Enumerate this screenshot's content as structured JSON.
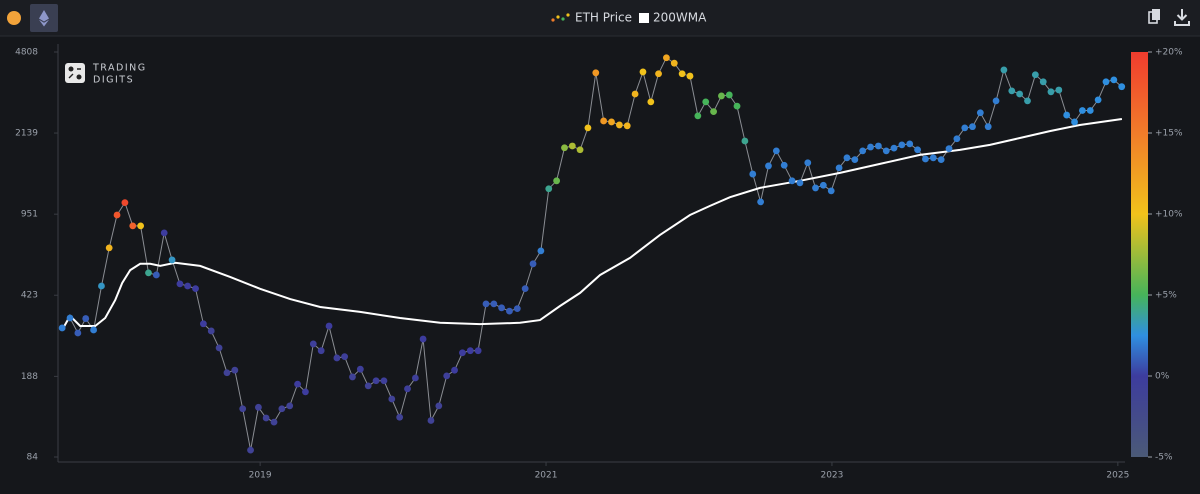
{
  "logo": [
    "TRADING",
    "DIGITS"
  ],
  "chart_data": {
    "type": "scatter",
    "log_y": true,
    "ylim": [
      84,
      4808
    ],
    "yticks": [
      84,
      188,
      423,
      951,
      2139,
      4808
    ],
    "xlim": [
      2017.6,
      2025.05
    ],
    "xticks": [
      2019,
      2021,
      2023,
      2025
    ],
    "colorbar": {
      "range": [
        -5,
        20
      ],
      "ticks": [
        {
          "value": -5,
          "label": "-5%"
        },
        {
          "value": 0,
          "label": "0%"
        },
        {
          "value": 5,
          "label": "+5%"
        },
        {
          "value": 10,
          "label": "+10%"
        },
        {
          "value": 15,
          "label": "+15%"
        },
        {
          "value": 20,
          "label": "+20%"
        }
      ],
      "stops": [
        {
          "value": -5,
          "color": "#4b5a77"
        },
        {
          "value": 0,
          "color": "#3d3c9e"
        },
        {
          "value": 2.5,
          "color": "#2f8fe0"
        },
        {
          "value": 5,
          "color": "#46b45a"
        },
        {
          "value": 10,
          "color": "#f1c21b"
        },
        {
          "value": 15,
          "color": "#f07c2a"
        },
        {
          "value": 20,
          "color": "#f03c2e"
        }
      ]
    },
    "series": [
      {
        "name": "ETH Price",
        "line_color": "#8a8d93",
        "x": [
          2017.615,
          2017.67,
          2017.725,
          2017.78,
          2017.835,
          2017.89,
          2017.944,
          2017.999,
          2018.054,
          2018.109,
          2018.164,
          2018.219,
          2018.274,
          2018.329,
          2018.384,
          2018.439,
          2018.493,
          2018.548,
          2018.603,
          2018.658,
          2018.713,
          2018.768,
          2018.823,
          2018.878,
          2018.933,
          2018.988,
          2019.042,
          2019.097,
          2019.152,
          2019.207,
          2019.262,
          2019.317,
          2019.372,
          2019.427,
          2019.482,
          2019.537,
          2019.591,
          2019.646,
          2019.701,
          2019.756,
          2019.811,
          2019.866,
          2019.921,
          2019.976,
          2020.031,
          2020.086,
          2020.14,
          2020.195,
          2020.25,
          2020.305,
          2020.36,
          2020.415,
          2020.47,
          2020.525,
          2020.58,
          2020.635,
          2020.689,
          2020.744,
          2020.799,
          2020.854,
          2020.909,
          2020.964,
          2021.019,
          2021.074,
          2021.129,
          2021.184,
          2021.238,
          2021.293,
          2021.348,
          2021.403,
          2021.458,
          2021.513,
          2021.568,
          2021.623,
          2021.678,
          2021.733,
          2021.787,
          2021.842,
          2021.897,
          2021.952,
          2022.007,
          2022.062,
          2022.117,
          2022.172,
          2022.227,
          2022.282,
          2022.336,
          2022.391,
          2022.446,
          2022.501,
          2022.556,
          2022.611,
          2022.666,
          2022.721,
          2022.776,
          2022.831,
          2022.885,
          2022.94,
          2022.995,
          2023.05,
          2023.105,
          2023.16,
          2023.215,
          2023.27,
          2023.325,
          2023.38,
          2023.434,
          2023.489,
          2023.544,
          2023.599,
          2023.654,
          2023.709,
          2023.764,
          2023.819,
          2023.874,
          2023.929,
          2023.983,
          2024.038,
          2024.093,
          2024.148,
          2024.203,
          2024.258,
          2024.313,
          2024.368,
          2024.423,
          2024.478,
          2024.532,
          2024.587,
          2024.642,
          2024.697,
          2024.752,
          2024.807,
          2024.862,
          2024.917,
          2024.972,
          2025.027
        ],
        "values": [
          305,
          337,
          290,
          335,
          299,
          464,
          679,
          943,
          1067,
          846,
          846,
          529,
          518,
          789,
          602,
          474,
          464,
          452,
          318,
          296,
          250,
          195,
          200,
          136,
          90,
          138,
          124,
          119,
          136,
          140,
          174,
          161,
          260,
          243,
          311,
          226,
          229,
          187,
          202,
          171,
          180,
          180,
          150,
          125,
          166,
          185,
          273,
          121,
          140,
          189,
          200,
          238,
          243,
          243,
          388,
          388,
          373,
          361,
          370,
          452,
          579,
          659,
          1226,
          1327,
          1847,
          1880,
          1810,
          2252,
          3906,
          2414,
          2390,
          2320,
          2300,
          3160,
          3940,
          2920,
          3870,
          4540,
          4300,
          3870,
          3780,
          2540,
          2920,
          2650,
          3100,
          3130,
          2800,
          1975,
          1420,
          1075,
          1540,
          1790,
          1550,
          1327,
          1300,
          1590,
          1236,
          1270,
          1200,
          1510,
          1670,
          1640,
          1790,
          1860,
          1880,
          1790,
          1840,
          1900,
          1920,
          1810,
          1650,
          1670,
          1640,
          1830,
          2020,
          2252,
          2280,
          2620,
          2280,
          2950,
          4020,
          3260,
          3160,
          2950,
          3830,
          3570,
          3230,
          3290,
          2560,
          2390,
          2680,
          2680,
          2980,
          3570,
          3640,
          3400
        ],
        "color_values": [
          2,
          2,
          1,
          1,
          2,
          3,
          11,
          18,
          19,
          17,
          10,
          4,
          1,
          0,
          3,
          0,
          0,
          0,
          0,
          -1,
          -1,
          -1,
          -1,
          -1,
          -1,
          -1,
          -1,
          -1,
          -1,
          -1,
          0,
          0,
          -0.5,
          -0.5,
          0,
          -0.5,
          -0.5,
          -1,
          -0.5,
          -1,
          -0.5,
          -0.5,
          -1,
          -1,
          -0.5,
          -0.5,
          0,
          -1,
          -1,
          -0.5,
          0,
          0,
          0,
          0,
          1,
          1,
          1,
          1,
          1,
          1,
          1,
          2,
          4,
          6,
          7,
          8,
          8,
          10,
          13,
          13,
          12,
          11,
          11,
          11,
          10,
          10,
          11,
          12,
          11,
          10,
          10,
          5,
          5,
          6,
          6,
          5,
          5,
          4,
          2,
          2,
          2,
          2,
          2,
          2,
          2,
          2,
          2,
          2,
          2,
          2,
          2,
          2,
          2,
          2,
          2,
          2,
          2,
          2,
          2,
          2,
          2,
          2,
          2,
          2,
          2,
          2,
          2,
          2,
          2,
          2,
          3.5,
          3.5,
          3.5,
          3.5,
          3.5,
          3.5,
          3.5,
          3.5,
          2.5,
          2.5,
          2.5,
          2.5,
          2.5,
          2.5,
          2.5,
          2.5
        ]
      },
      {
        "name": "200WMA",
        "color": "#ffffff",
        "x": [
          2017.615,
          2017.671,
          2017.741,
          2017.846,
          2017.916,
          2017.986,
          2018.035,
          2018.091,
          2018.161,
          2018.231,
          2018.301,
          2018.406,
          2018.58,
          2018.79,
          2019.0,
          2019.21,
          2019.42,
          2019.699,
          2019.979,
          2020.259,
          2020.538,
          2020.818,
          2020.958,
          2021.098,
          2021.238,
          2021.378,
          2021.587,
          2021.797,
          2022.007,
          2022.147,
          2022.287,
          2022.497,
          2022.776,
          2023.056,
          2023.336,
          2023.615,
          2023.895,
          2024.105,
          2024.315,
          2024.524,
          2024.734,
          2025.028
        ],
        "values": [
          299,
          344,
          311,
          311,
          337,
          403,
          478,
          544,
          579,
          579,
          567,
          585,
          567,
          508,
          451,
          407,
          376,
          358,
          337,
          321,
          317,
          321,
          330,
          380,
          433,
          518,
          614,
          773,
          943,
          1033,
          1127,
          1236,
          1327,
          1437,
          1572,
          1720,
          1807,
          1900,
          2035,
          2180,
          2318,
          2462
        ]
      }
    ]
  }
}
